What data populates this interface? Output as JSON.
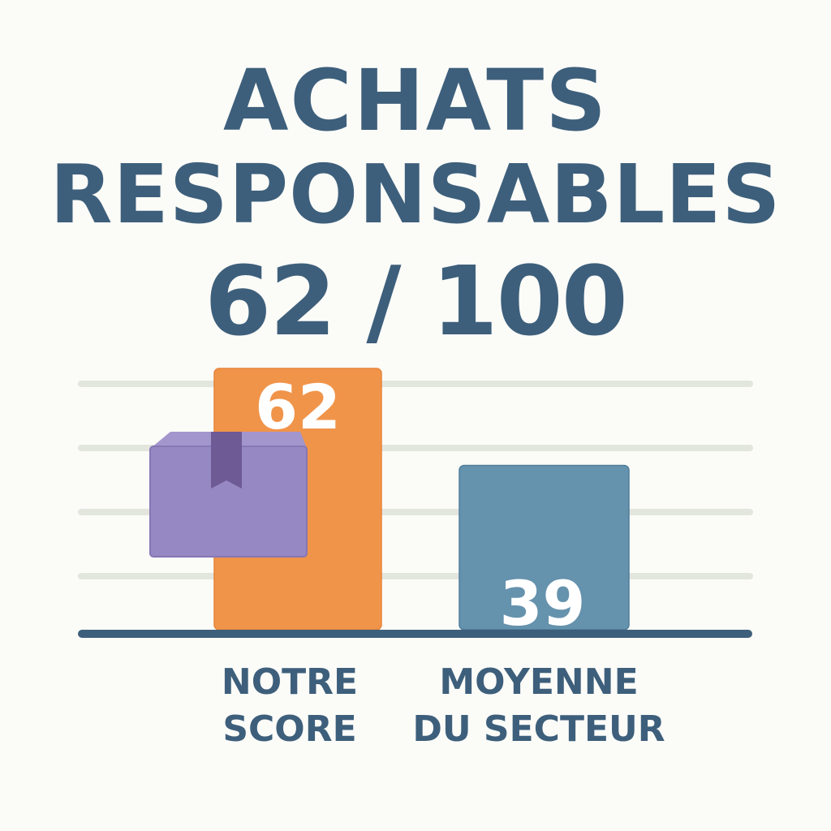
{
  "chart_data": {
    "type": "bar",
    "title": "ACHATS RESPONSABLES",
    "title_lines": [
      "ACHATS",
      "RESPONSABLES"
    ],
    "subtitle": "62 / 100",
    "categories": [
      "NOTRE\nSCORE",
      "MOYENNE\nDU SECTEUR"
    ],
    "values": [
      62,
      39
    ],
    "data_labels": [
      "62",
      "39"
    ],
    "ylim": [
      0,
      62
    ],
    "grid": true,
    "legend": "none",
    "xlabel": "",
    "ylabel": ""
  },
  "colors": {
    "title": "#3d5f7b",
    "bar_ours": "#f0944a",
    "bar_sector": "#6592ad",
    "baseline": "#3d5f7b",
    "grid": "#e3e6dd",
    "box_icon": "#9688c2",
    "box_ribbon": "#6e5a95"
  },
  "icons": {
    "bar_decoration": "package-box-icon"
  }
}
